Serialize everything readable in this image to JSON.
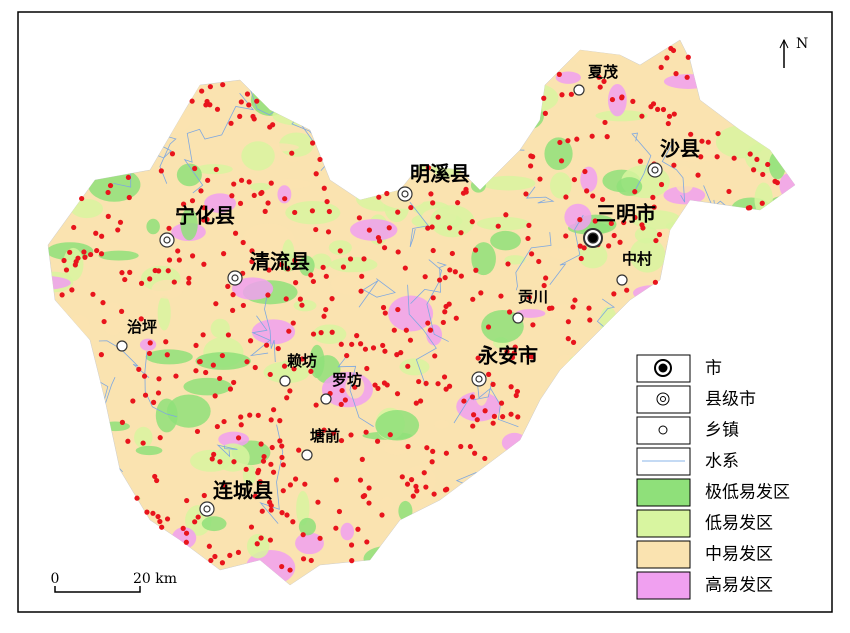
{
  "north": "N",
  "places": [
    "夏茂",
    "沙县",
    "三明市",
    "中村",
    "明溪县",
    "宁化县",
    "清流县",
    "贡川",
    "治坪",
    "永安市",
    "赖坊",
    "罗坊",
    "塘前",
    "连城县"
  ],
  "legend": {
    "items": [
      "市",
      "县级市",
      "乡镇",
      "水系",
      "极低易发区",
      "低易发区",
      "中易发区",
      "高易发区"
    ]
  },
  "scale_bar": {
    "start": "0",
    "end": "20 km"
  }
}
